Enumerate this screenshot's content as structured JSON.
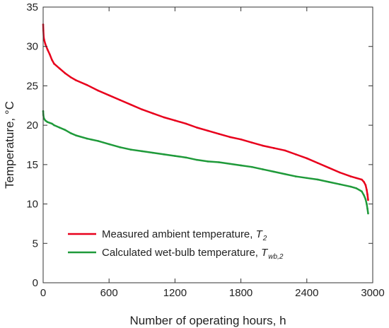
{
  "chart_data": {
    "type": "line",
    "xlabel": "Number of operating hours, h",
    "ylabel": "Temperature, °C",
    "xlim": [
      0,
      3000
    ],
    "ylim": [
      0,
      35
    ],
    "xticks": [
      0,
      600,
      1200,
      1800,
      2400,
      3000
    ],
    "yticks": [
      0,
      5,
      10,
      15,
      20,
      25,
      30,
      35
    ],
    "grid": false,
    "legend_position": "bottom-left",
    "series": [
      {
        "name": "Measured ambient temperature, T2",
        "legend_main": "Measured ambient temperature, ",
        "legend_var": "T",
        "legend_sub": "2",
        "color": "#e8001c",
        "x": [
          0,
          2,
          5,
          10,
          20,
          40,
          60,
          80,
          100,
          150,
          200,
          250,
          300,
          400,
          500,
          600,
          700,
          800,
          900,
          1000,
          1100,
          1200,
          1300,
          1400,
          1500,
          1600,
          1700,
          1800,
          1900,
          2000,
          2100,
          2200,
          2300,
          2400,
          2500,
          2600,
          2700,
          2800,
          2850,
          2900,
          2920,
          2935,
          2945,
          2952,
          2958
        ],
        "y": [
          32.8,
          32.0,
          31.2,
          30.8,
          30.3,
          29.6,
          29.0,
          28.3,
          27.8,
          27.2,
          26.6,
          26.1,
          25.7,
          25.1,
          24.4,
          23.8,
          23.2,
          22.6,
          22.0,
          21.5,
          21.0,
          20.6,
          20.2,
          19.7,
          19.3,
          18.9,
          18.5,
          18.2,
          17.8,
          17.4,
          17.1,
          16.8,
          16.3,
          15.8,
          15.2,
          14.6,
          14.0,
          13.5,
          13.3,
          13.1,
          12.8,
          12.4,
          11.8,
          11.2,
          10.5
        ]
      },
      {
        "name": "Calculated wet-bulb temperature, Twb,2",
        "legend_main": "Calculated wet-bulb temperature, ",
        "legend_var": "T",
        "legend_sub": "wb,2",
        "color": "#1f9a3a",
        "x": [
          0,
          2,
          5,
          10,
          20,
          40,
          60,
          80,
          100,
          150,
          200,
          250,
          300,
          400,
          500,
          600,
          700,
          800,
          900,
          1000,
          1100,
          1200,
          1300,
          1400,
          1500,
          1600,
          1700,
          1800,
          1900,
          2000,
          2100,
          2200,
          2300,
          2400,
          2500,
          2600,
          2700,
          2800,
          2850,
          2900,
          2920,
          2935,
          2945,
          2952,
          2958
        ],
        "y": [
          21.8,
          21.3,
          21.0,
          20.8,
          20.6,
          20.4,
          20.3,
          20.2,
          20.0,
          19.7,
          19.4,
          19.0,
          18.7,
          18.3,
          18.0,
          17.6,
          17.2,
          16.9,
          16.7,
          16.5,
          16.3,
          16.1,
          15.9,
          15.6,
          15.4,
          15.3,
          15.1,
          14.9,
          14.7,
          14.4,
          14.1,
          13.8,
          13.5,
          13.3,
          13.1,
          12.8,
          12.5,
          12.2,
          12.0,
          11.6,
          11.1,
          10.6,
          10.0,
          9.4,
          8.8
        ]
      }
    ]
  }
}
